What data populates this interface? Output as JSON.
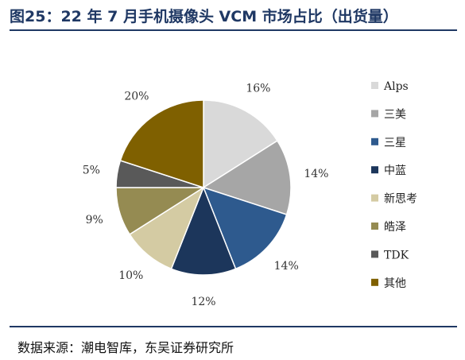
{
  "title": "图25：22 年 7 月手机摄像头 VCM 市场占比（出货量）",
  "source": "数据来源：潮电智库，东吴证券研究所",
  "chart_data": {
    "type": "pie",
    "title": "图25：22 年 7 月手机摄像头 VCM 市场占比（出货量）",
    "labels": [
      "Alps",
      "三美",
      "三星",
      "中蓝",
      "新思考",
      "皓泽",
      "TDK",
      "其他"
    ],
    "values": [
      16,
      14,
      14,
      12,
      10,
      9,
      5,
      20
    ],
    "value_labels": [
      "16%",
      "14%",
      "14%",
      "12%",
      "10%",
      "9%",
      "5%",
      "20%"
    ],
    "colors": [
      "#d9d9d9",
      "#a6a6a6",
      "#2e5a8e",
      "#1c365b",
      "#d4cba3",
      "#958b52",
      "#595959",
      "#7f6000"
    ],
    "legend_position": "right"
  }
}
